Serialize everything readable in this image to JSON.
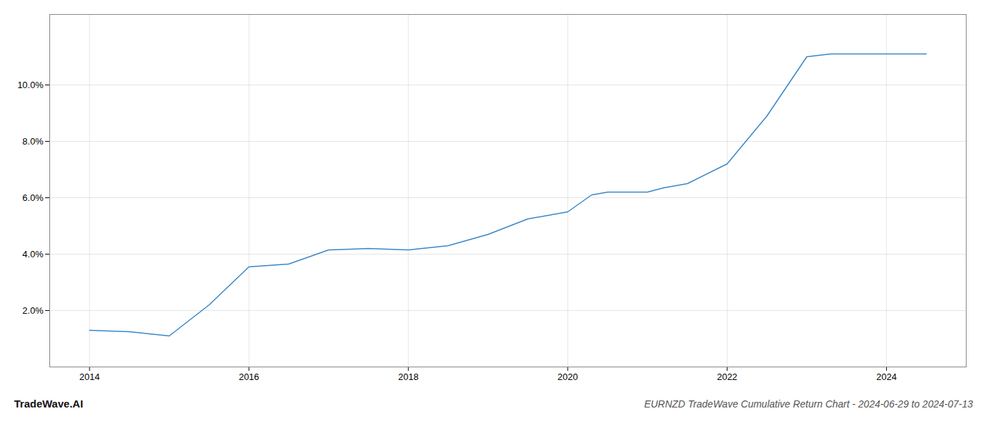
{
  "chart_data": {
    "type": "line",
    "title": "EURNZD TradeWave Cumulative Return Chart - 2024-06-29 to 2024-07-13",
    "annotations": [
      "TradeWave.AI"
    ],
    "x": [
      2014.0,
      2014.5,
      2015.0,
      2015.5,
      2016.0,
      2016.5,
      2017.0,
      2017.5,
      2018.0,
      2018.5,
      2019.0,
      2019.5,
      2020.0,
      2020.3,
      2020.5,
      2021.0,
      2021.2,
      2021.5,
      2022.0,
      2022.5,
      2023.0,
      2023.3,
      2024.0,
      2024.5
    ],
    "values": [
      1.3,
      1.25,
      1.1,
      2.2,
      3.55,
      3.65,
      4.15,
      4.2,
      4.15,
      4.3,
      4.7,
      5.25,
      5.5,
      6.1,
      6.2,
      6.2,
      6.35,
      6.5,
      7.2,
      8.9,
      11.0,
      11.1,
      11.1,
      11.1
    ],
    "color": "#3a86c8",
    "xlim": [
      2013.5,
      2025.0
    ],
    "ylim": [
      0.0,
      12.5
    ],
    "xticks": [
      2014,
      2016,
      2018,
      2020,
      2022,
      2024
    ],
    "yticks": [
      {
        "value": 2.0,
        "label": "2.0%"
      },
      {
        "value": 4.0,
        "label": "4.0%"
      },
      {
        "value": 6.0,
        "label": "6.0%"
      },
      {
        "value": 8.0,
        "label": "8.0%"
      },
      {
        "value": 10.0,
        "label": "10.0%"
      }
    ],
    "grid": true
  }
}
